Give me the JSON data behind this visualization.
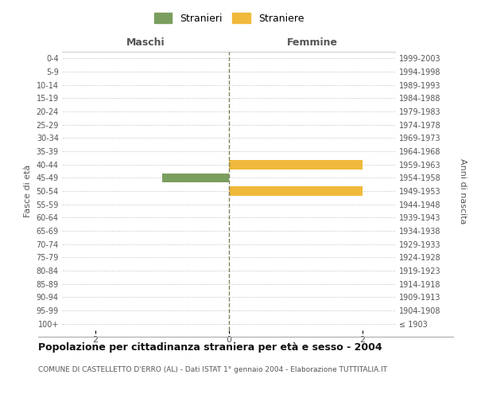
{
  "age_groups": [
    "100+",
    "95-99",
    "90-94",
    "85-89",
    "80-84",
    "75-79",
    "70-74",
    "65-69",
    "60-64",
    "55-59",
    "50-54",
    "45-49",
    "40-44",
    "35-39",
    "30-34",
    "25-29",
    "20-24",
    "15-19",
    "10-14",
    "5-9",
    "0-4"
  ],
  "birth_years": [
    "≤ 1903",
    "1904-1908",
    "1909-1913",
    "1914-1918",
    "1919-1923",
    "1924-1928",
    "1929-1933",
    "1934-1938",
    "1939-1943",
    "1944-1948",
    "1949-1953",
    "1954-1958",
    "1959-1963",
    "1964-1968",
    "1969-1973",
    "1974-1978",
    "1979-1983",
    "1984-1988",
    "1989-1993",
    "1994-1998",
    "1999-2003"
  ],
  "maschi_values": [
    0,
    0,
    0,
    0,
    0,
    0,
    0,
    0,
    0,
    0,
    0,
    1,
    0,
    0,
    0,
    0,
    0,
    0,
    0,
    0,
    0
  ],
  "femmine_values": [
    0,
    0,
    0,
    0,
    0,
    0,
    0,
    0,
    0,
    0,
    2,
    0,
    2,
    0,
    0,
    0,
    0,
    0,
    0,
    0,
    0
  ],
  "stranieri_color": "#7a9e5e",
  "straniere_color": "#f0b93b",
  "background_color": "#ffffff",
  "grid_color": "#cccccc",
  "center_line_color": "#808060",
  "title": "Popolazione per cittadinanza straniera per età e sesso - 2004",
  "subtitle": "COMUNE DI CASTELLETTO D'ERRO (AL) - Dati ISTAT 1° gennaio 2004 - Elaborazione TUTTITALIA.IT",
  "ylabel_left": "Fasce di età",
  "ylabel_right": "Anni di nascita",
  "header_maschi": "Maschi",
  "header_femmine": "Femmine",
  "legend_stranieri": "Stranieri",
  "legend_straniere": "Straniere",
  "xlim": 2.5,
  "bar_height": 0.7
}
